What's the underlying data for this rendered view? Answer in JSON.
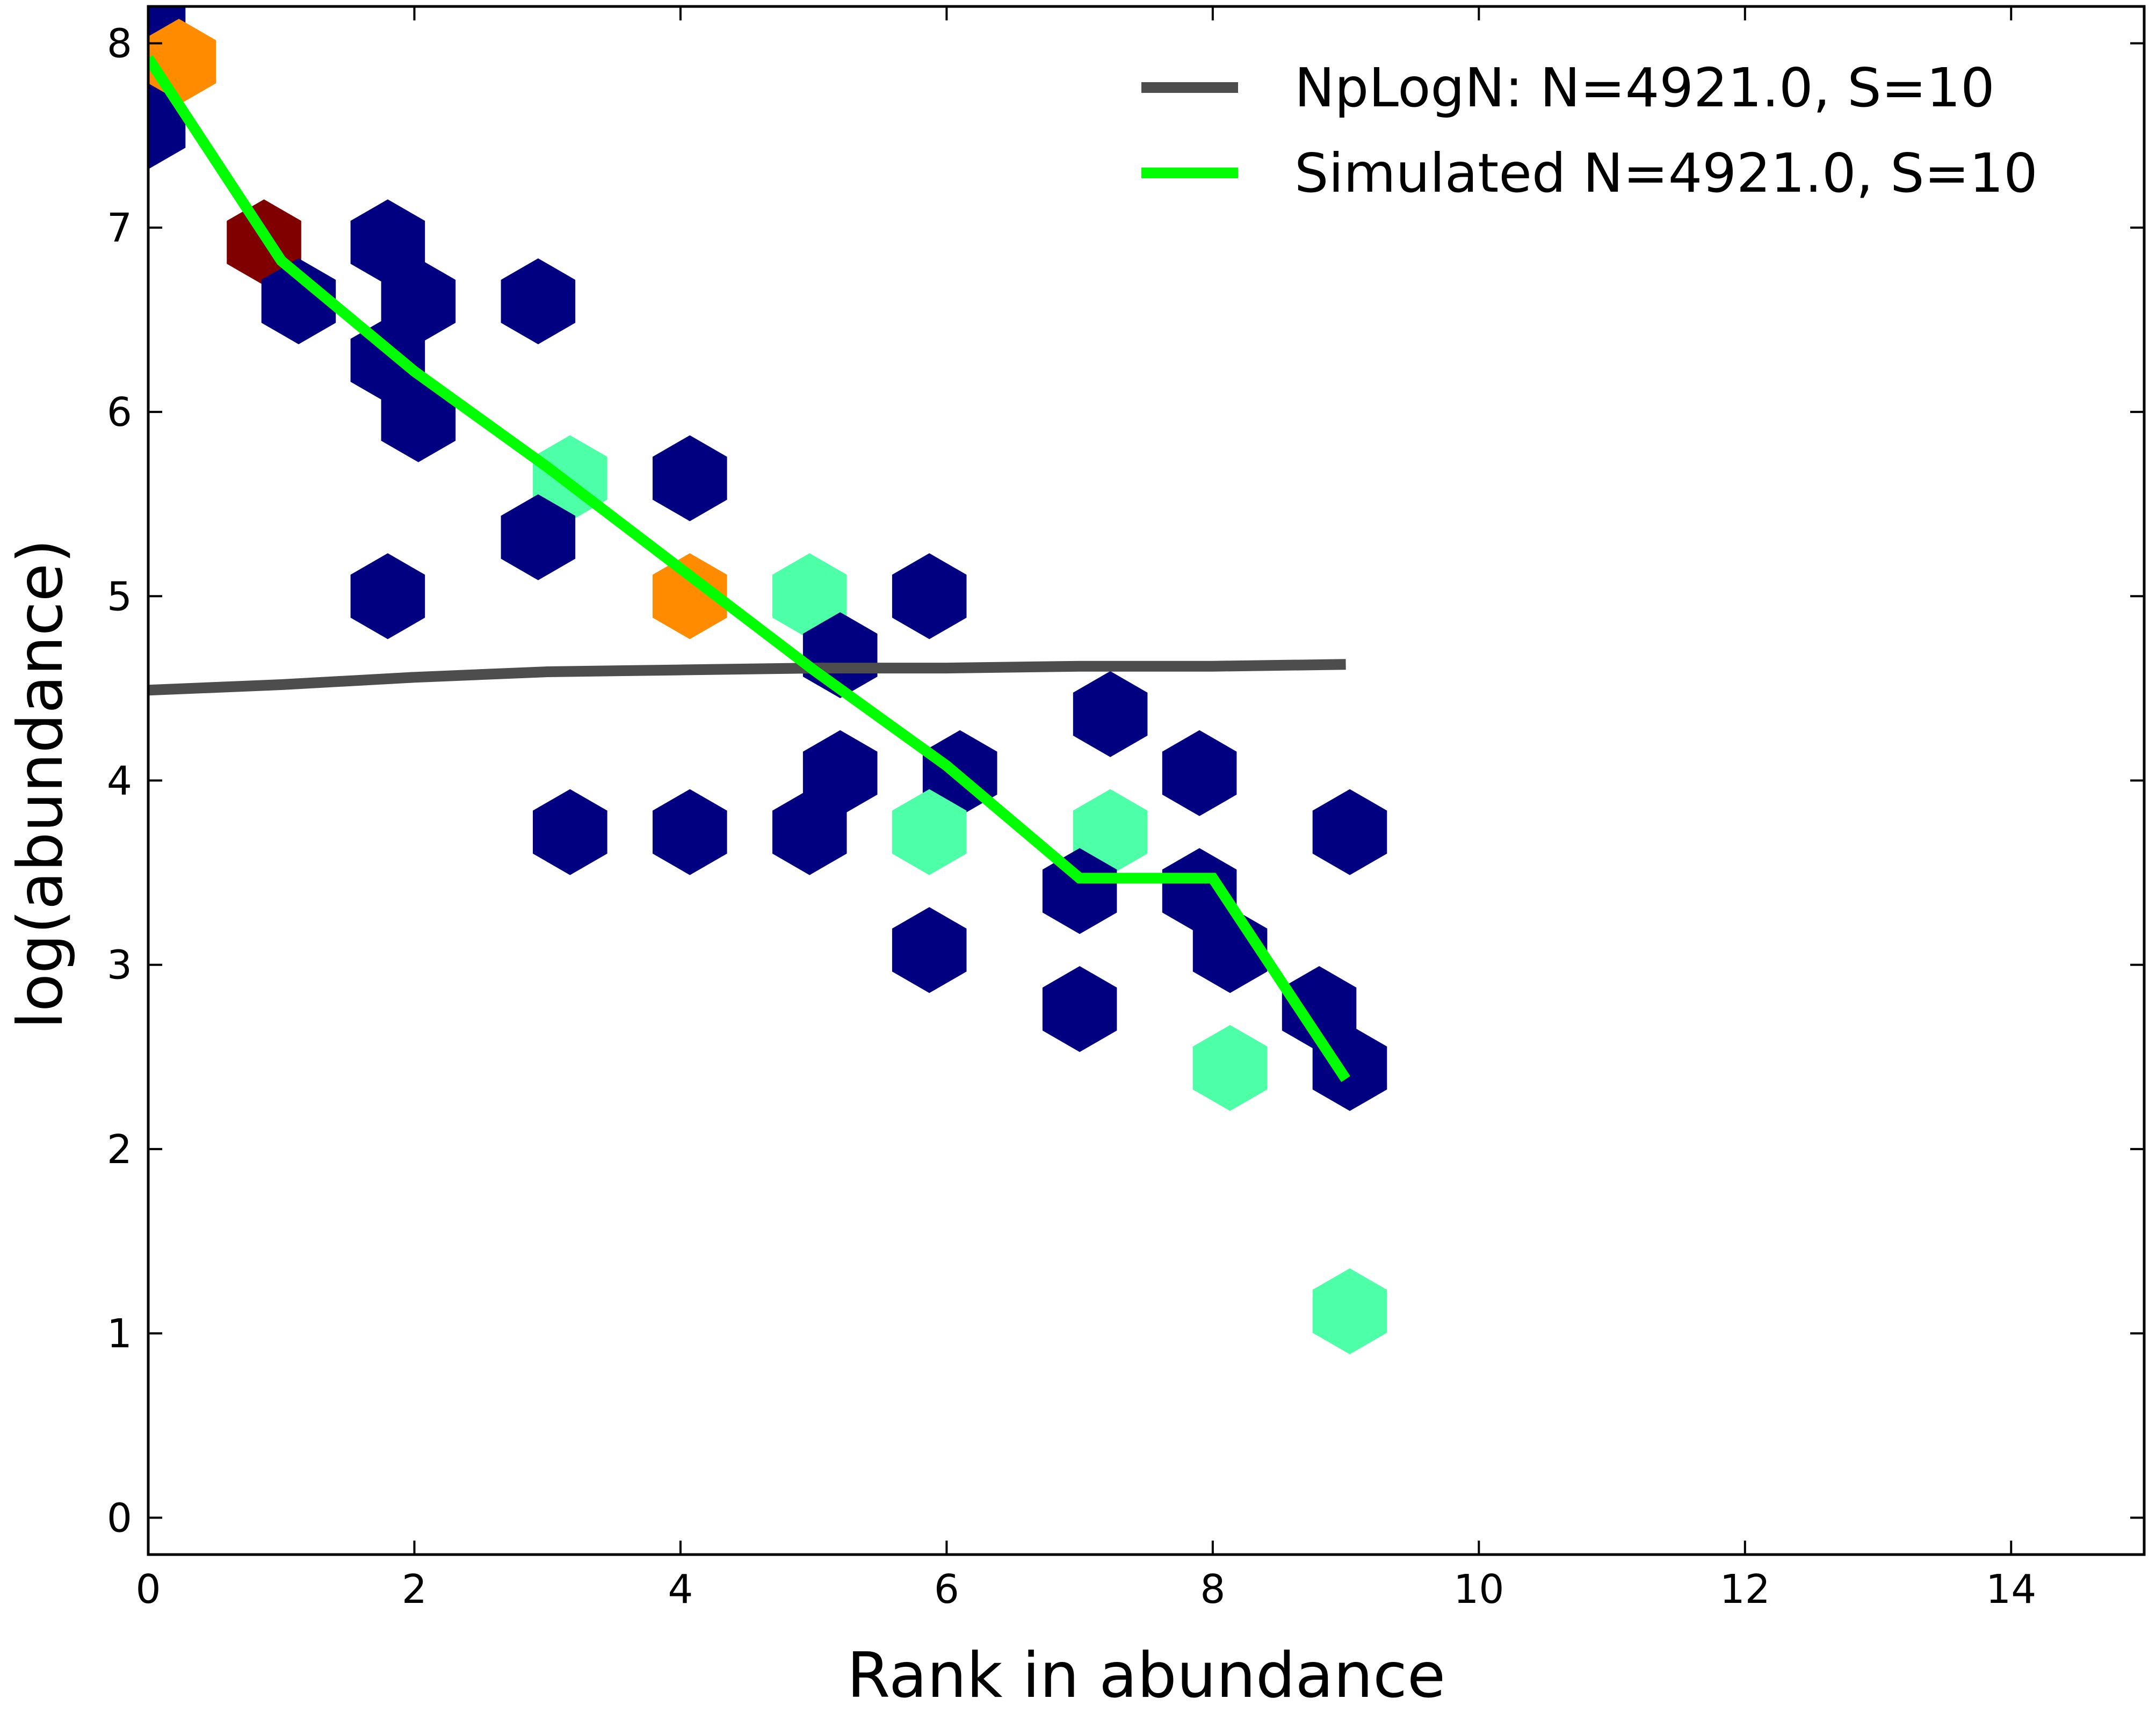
{
  "chart_data": {
    "type": "scatter",
    "title": "",
    "xlabel": "Rank in abundance",
    "ylabel": "log(abundance)",
    "xlim": [
      0,
      15
    ],
    "ylim": [
      -0.2,
      8.2
    ],
    "x_ticks": [
      0,
      2,
      4,
      6,
      8,
      10,
      12,
      14
    ],
    "x_tick_labels": [
      "0",
      "2",
      "4",
      "6",
      "8",
      "10",
      "12",
      "14"
    ],
    "y_ticks": [
      0,
      1,
      2,
      3,
      4,
      5,
      6,
      7,
      8
    ],
    "y_tick_labels": [
      "0",
      "1",
      "2",
      "3",
      "4",
      "5",
      "6",
      "7",
      "8"
    ],
    "grid": false,
    "legend_position": "top-right",
    "hexbins": [
      {
        "x": 0.0,
        "y": 8.1,
        "color": "#000080"
      },
      {
        "x": 0.23,
        "y": 7.9,
        "color": "#ff8c00"
      },
      {
        "x": 0.0,
        "y": 7.55,
        "color": "#000080"
      },
      {
        "x": 0.87,
        "y": 6.92,
        "color": "#800000"
      },
      {
        "x": 1.13,
        "y": 6.6,
        "color": "#000080"
      },
      {
        "x": 1.8,
        "y": 6.92,
        "color": "#000080"
      },
      {
        "x": 2.03,
        "y": 6.6,
        "color": "#000080"
      },
      {
        "x": 1.8,
        "y": 6.28,
        "color": "#000080"
      },
      {
        "x": 2.03,
        "y": 5.96,
        "color": "#000080"
      },
      {
        "x": 2.93,
        "y": 6.6,
        "color": "#000080"
      },
      {
        "x": 3.17,
        "y": 5.64,
        "color": "#4dffa6"
      },
      {
        "x": 2.93,
        "y": 5.32,
        "color": "#000080"
      },
      {
        "x": 1.8,
        "y": 5.0,
        "color": "#000080"
      },
      {
        "x": 4.07,
        "y": 5.64,
        "color": "#000080"
      },
      {
        "x": 4.07,
        "y": 5.0,
        "color": "#ff8c00"
      },
      {
        "x": 4.97,
        "y": 5.0,
        "color": "#4dffa6"
      },
      {
        "x": 5.2,
        "y": 4.68,
        "color": "#000080"
      },
      {
        "x": 5.87,
        "y": 5.0,
        "color": "#000080"
      },
      {
        "x": 5.2,
        "y": 4.04,
        "color": "#000080"
      },
      {
        "x": 4.97,
        "y": 3.72,
        "color": "#000080"
      },
      {
        "x": 6.1,
        "y": 4.04,
        "color": "#000080"
      },
      {
        "x": 5.87,
        "y": 3.72,
        "color": "#4dffa6"
      },
      {
        "x": 5.87,
        "y": 3.08,
        "color": "#000080"
      },
      {
        "x": 3.17,
        "y": 3.72,
        "color": "#000080"
      },
      {
        "x": 4.07,
        "y": 3.72,
        "color": "#000080"
      },
      {
        "x": 7.23,
        "y": 4.36,
        "color": "#000080"
      },
      {
        "x": 7.23,
        "y": 3.72,
        "color": "#4dffa6"
      },
      {
        "x": 7.0,
        "y": 3.4,
        "color": "#000080"
      },
      {
        "x": 7.0,
        "y": 2.76,
        "color": "#000080"
      },
      {
        "x": 7.9,
        "y": 4.04,
        "color": "#000080"
      },
      {
        "x": 7.9,
        "y": 3.4,
        "color": "#000080"
      },
      {
        "x": 8.13,
        "y": 3.08,
        "color": "#000080"
      },
      {
        "x": 8.13,
        "y": 2.44,
        "color": "#4dffa6"
      },
      {
        "x": 8.8,
        "y": 2.76,
        "color": "#000080"
      },
      {
        "x": 9.03,
        "y": 2.44,
        "color": "#000080"
      },
      {
        "x": 9.03,
        "y": 3.72,
        "color": "#000080"
      },
      {
        "x": 9.03,
        "y": 1.12,
        "color": "#4dffa6"
      }
    ],
    "series": [
      {
        "name": "NpLogN: N=4921.0, S=10",
        "color": "#4d4d4d",
        "x": [
          0,
          1,
          2,
          3,
          4,
          5,
          6,
          7,
          8,
          9
        ],
        "y": [
          4.49,
          4.52,
          4.56,
          4.59,
          4.6,
          4.61,
          4.61,
          4.62,
          4.62,
          4.63
        ]
      },
      {
        "name": "Simulated N=4921.0, S=10",
        "color": "#00ff00",
        "x": [
          0,
          1,
          2,
          3,
          4,
          5,
          6,
          7,
          8,
          9
        ],
        "y": [
          7.92,
          6.82,
          6.22,
          5.7,
          5.15,
          4.6,
          4.08,
          3.47,
          3.47,
          2.38
        ]
      }
    ]
  }
}
